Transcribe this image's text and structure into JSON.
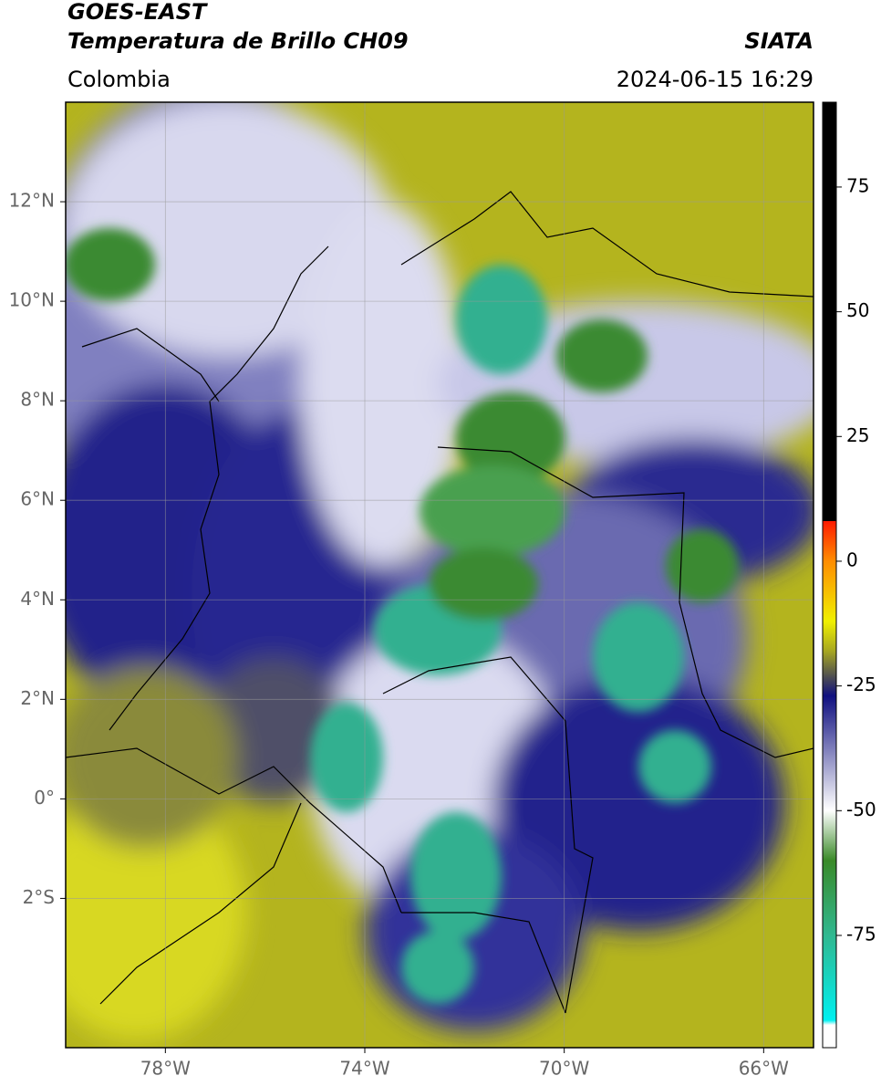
{
  "header": {
    "title": "GOES-EAST",
    "subtitle": "Temperatura de Brillo CH09",
    "source": "SIATA",
    "region": "Colombia",
    "datetime": "2024-06-15 16:29"
  },
  "map": {
    "xlim": [
      -80,
      -65
    ],
    "ylim": [
      -5,
      14
    ],
    "xticks": [
      {
        "value": -78,
        "label": "78°W"
      },
      {
        "value": -74,
        "label": "74°W"
      },
      {
        "value": -70,
        "label": "70°W"
      },
      {
        "value": -66,
        "label": "66°W"
      }
    ],
    "yticks": [
      {
        "value": 12,
        "label": "12°N"
      },
      {
        "value": 10,
        "label": "10°N"
      },
      {
        "value": 8,
        "label": "8°N"
      },
      {
        "value": 6,
        "label": "6°N"
      },
      {
        "value": 4,
        "label": "4°N"
      },
      {
        "value": 2,
        "label": "2°N"
      },
      {
        "value": 0,
        "label": "0°"
      },
      {
        "value": -2,
        "label": "2°S"
      }
    ],
    "grid": true
  },
  "colorbar": {
    "lim": [
      -97.5,
      92
    ],
    "ticks": [
      75,
      50,
      25,
      0,
      -25,
      -50,
      -75
    ]
  }
}
